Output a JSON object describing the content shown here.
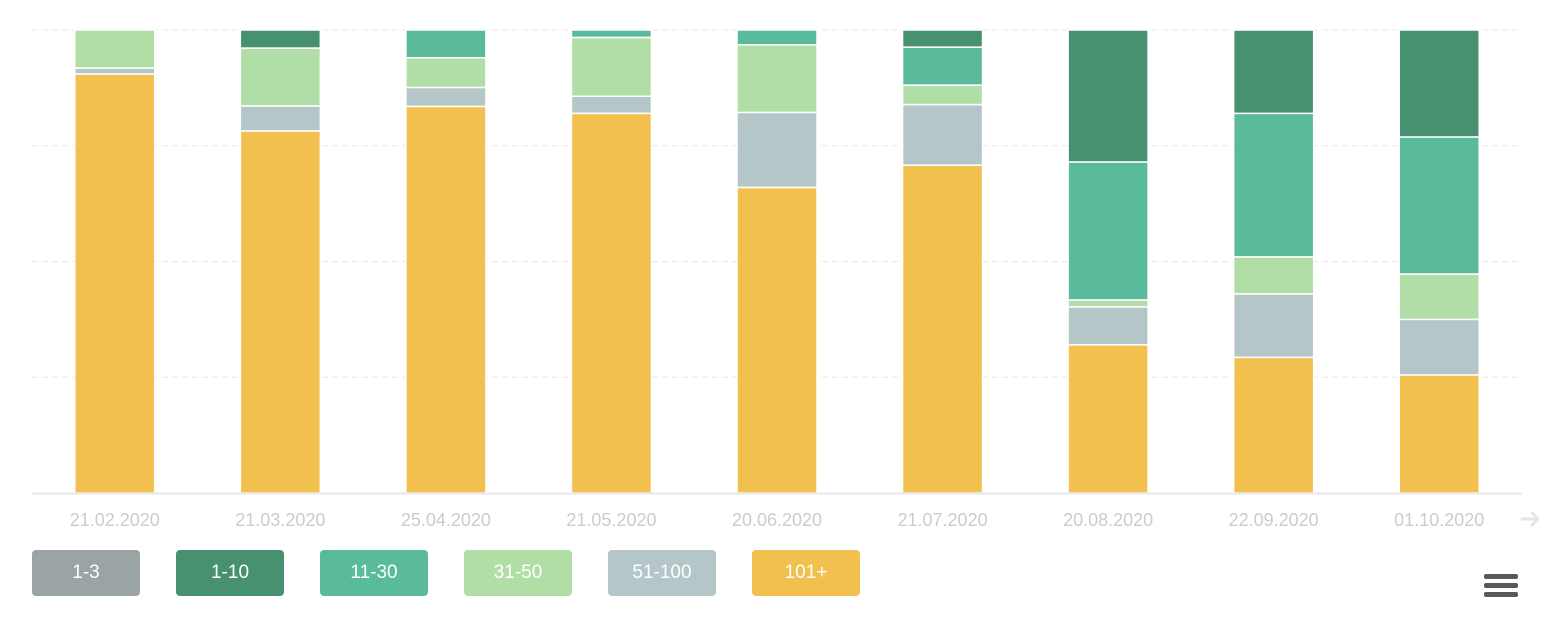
{
  "chart_data": {
    "type": "bar",
    "stacked": true,
    "categories": [
      "21.02.2020",
      "21.03.2020",
      "25.04.2020",
      "21.05.2020",
      "20.06.2020",
      "21.07.2020",
      "20.08.2020",
      "22.09.2020",
      "01.10.2020"
    ],
    "ylim": [
      0,
      100
    ],
    "y_tick_labels_shown": false,
    "grid": "horizontal dashed",
    "legend_position": "bottom-left",
    "series": [
      {
        "name": "101+",
        "color": "#f2c04e",
        "values": [
          90.5,
          78.2,
          83.5,
          82.0,
          66.0,
          70.8,
          32.0,
          29.3,
          25.5
        ]
      },
      {
        "name": "51-100",
        "color": "#b5c6c8",
        "values": [
          1.3,
          5.4,
          4.1,
          3.7,
          16.2,
          13.1,
          8.2,
          13.7,
          12.0
        ]
      },
      {
        "name": "31-50",
        "color": "#b0dea6",
        "values": [
          8.2,
          12.5,
          6.4,
          12.7,
          14.6,
          4.2,
          1.5,
          8.0,
          9.8
        ]
      },
      {
        "name": "11-30",
        "color": "#59ba9c",
        "values": [
          0,
          0,
          6.0,
          1.6,
          3.2,
          8.2,
          29.8,
          31.0,
          29.6
        ]
      },
      {
        "name": "1-10",
        "color": "#479170",
        "values": [
          0,
          3.9,
          0,
          0,
          0,
          3.7,
          28.5,
          18.0,
          23.1
        ]
      },
      {
        "name": "1-3",
        "color": "#9aa4a5",
        "values": [
          0,
          0,
          0,
          0,
          0,
          0,
          0,
          0,
          0
        ]
      }
    ],
    "legend": [
      {
        "label": "1-3",
        "color": "#9aa4a5"
      },
      {
        "label": "1-10",
        "color": "#479170"
      },
      {
        "label": "11-30",
        "color": "#59ba9c"
      },
      {
        "label": "31-50",
        "color": "#b0dea6"
      },
      {
        "label": "51-100",
        "color": "#b5c6c8"
      },
      {
        "label": "101+",
        "color": "#f2c04e"
      }
    ]
  },
  "icons": {
    "menu": "hamburger-menu-icon",
    "scroll": "arrow-right-icon"
  }
}
